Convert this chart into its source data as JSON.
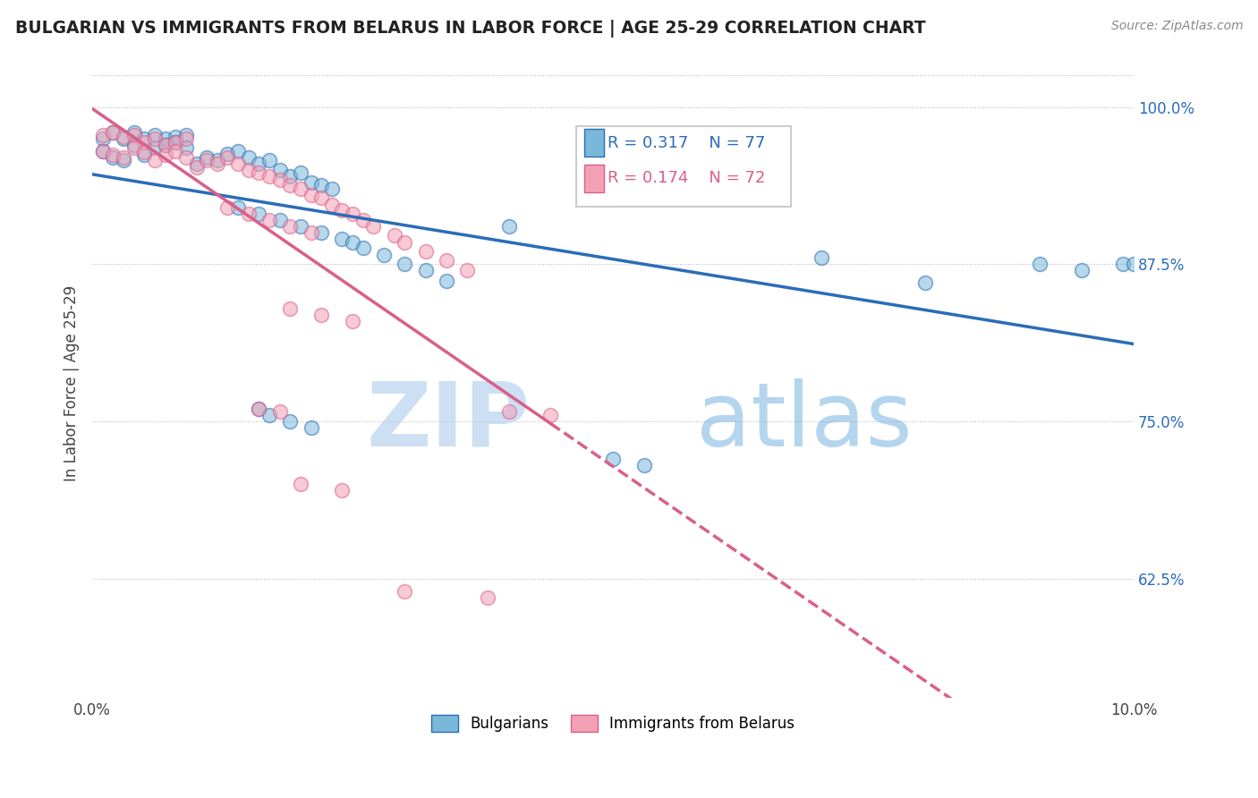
{
  "title": "BULGARIAN VS IMMIGRANTS FROM BELARUS IN LABOR FORCE | AGE 25-29 CORRELATION CHART",
  "source": "Source: ZipAtlas.com",
  "ylabel": "In Labor Force | Age 25-29",
  "xlim": [
    0.0,
    0.1
  ],
  "ylim": [
    0.53,
    1.03
  ],
  "ytick_positions": [
    0.625,
    0.75,
    0.875,
    1.0
  ],
  "ytick_labels": [
    "62.5%",
    "75.0%",
    "87.5%",
    "100.0%"
  ],
  "blue_color": "#7ab8d9",
  "pink_color": "#f4a0b5",
  "blue_line_color": "#2b6cb8",
  "pink_line_color": "#d95f8a",
  "legend_blue_r": "R = 0.317",
  "legend_blue_n": "N = 77",
  "legend_pink_r": "R = 0.174",
  "legend_pink_n": "N = 72",
  "watermark_zip": "ZIP",
  "watermark_atlas": "atlas",
  "blue_scatter_x": [
    0.001,
    0.002,
    0.003,
    0.004,
    0.005,
    0.006,
    0.007,
    0.008,
    0.009,
    0.001,
    0.002,
    0.003,
    0.004,
    0.005,
    0.006,
    0.007,
    0.008,
    0.009,
    0.01,
    0.011,
    0.012,
    0.013,
    0.014,
    0.015,
    0.016,
    0.017,
    0.018,
    0.019,
    0.02,
    0.021,
    0.022,
    0.023,
    0.014,
    0.016,
    0.018,
    0.02,
    0.022,
    0.024,
    0.025,
    0.026,
    0.028,
    0.03,
    0.032,
    0.034,
    0.016,
    0.017,
    0.019,
    0.021,
    0.04,
    0.05,
    0.053,
    0.07,
    0.08,
    0.091,
    0.095,
    0.099,
    0.1
  ],
  "blue_scatter_y": [
    0.975,
    0.98,
    0.975,
    0.98,
    0.975,
    0.978,
    0.975,
    0.976,
    0.978,
    0.965,
    0.96,
    0.958,
    0.97,
    0.962,
    0.968,
    0.97,
    0.972,
    0.968,
    0.955,
    0.96,
    0.958,
    0.963,
    0.965,
    0.96,
    0.955,
    0.958,
    0.95,
    0.945,
    0.948,
    0.94,
    0.938,
    0.935,
    0.92,
    0.915,
    0.91,
    0.905,
    0.9,
    0.895,
    0.892,
    0.888,
    0.882,
    0.875,
    0.87,
    0.862,
    0.76,
    0.755,
    0.75,
    0.745,
    0.905,
    0.72,
    0.715,
    0.88,
    0.86,
    0.875,
    0.87,
    0.875,
    0.875
  ],
  "pink_scatter_x": [
    0.001,
    0.002,
    0.003,
    0.004,
    0.005,
    0.006,
    0.007,
    0.008,
    0.009,
    0.001,
    0.002,
    0.003,
    0.004,
    0.005,
    0.006,
    0.007,
    0.008,
    0.009,
    0.01,
    0.011,
    0.012,
    0.013,
    0.014,
    0.015,
    0.016,
    0.017,
    0.018,
    0.019,
    0.02,
    0.021,
    0.022,
    0.023,
    0.024,
    0.025,
    0.026,
    0.013,
    0.015,
    0.017,
    0.019,
    0.021,
    0.027,
    0.029,
    0.03,
    0.032,
    0.034,
    0.036,
    0.04,
    0.044,
    0.019,
    0.022,
    0.025,
    0.03,
    0.038,
    0.016,
    0.018,
    0.02,
    0.024
  ],
  "pink_scatter_y": [
    0.978,
    0.98,
    0.976,
    0.978,
    0.972,
    0.975,
    0.97,
    0.972,
    0.975,
    0.965,
    0.962,
    0.96,
    0.968,
    0.964,
    0.958,
    0.962,
    0.965,
    0.96,
    0.952,
    0.958,
    0.955,
    0.96,
    0.955,
    0.95,
    0.948,
    0.945,
    0.942,
    0.938,
    0.935,
    0.93,
    0.928,
    0.922,
    0.918,
    0.915,
    0.91,
    0.92,
    0.915,
    0.91,
    0.905,
    0.9,
    0.905,
    0.898,
    0.892,
    0.885,
    0.878,
    0.87,
    0.758,
    0.755,
    0.84,
    0.835,
    0.83,
    0.615,
    0.61,
    0.76,
    0.758,
    0.7,
    0.695
  ]
}
